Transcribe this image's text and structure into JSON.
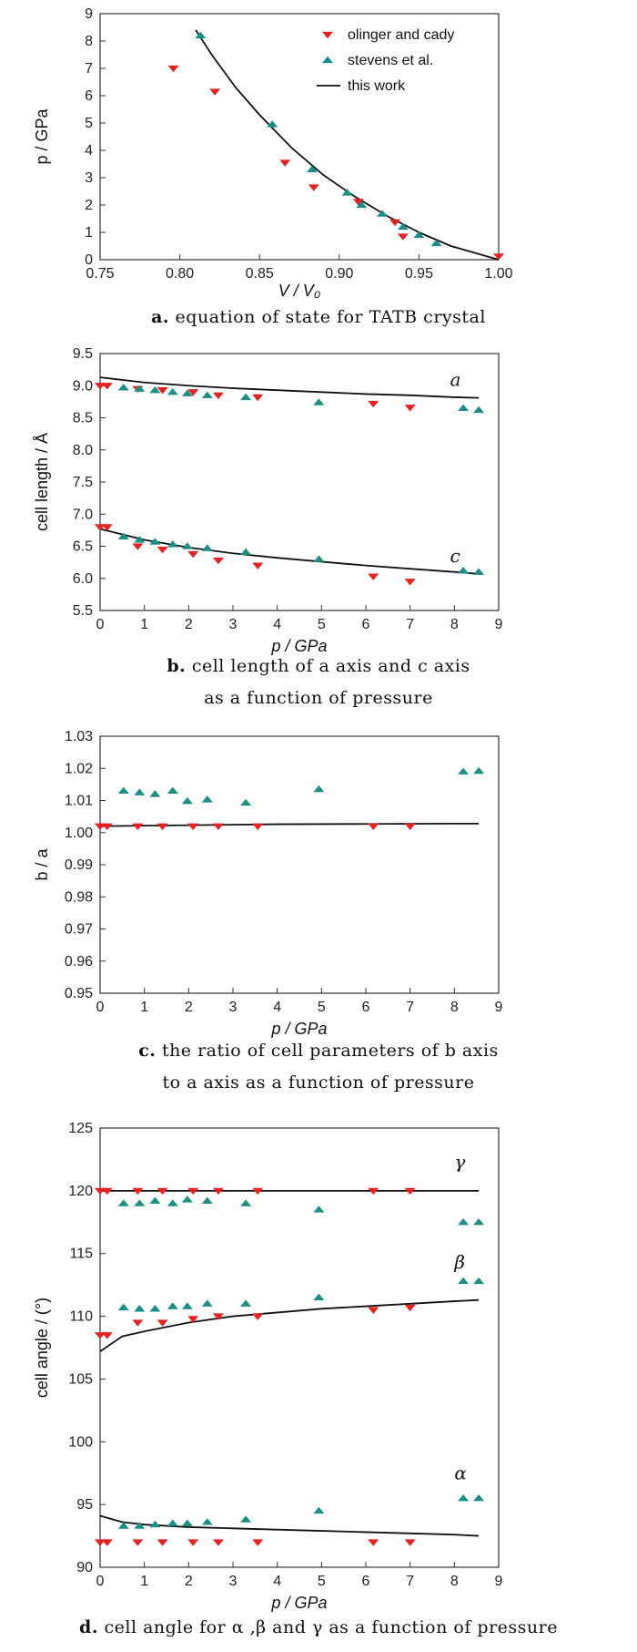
{
  "charts": [
    {
      "id": "a",
      "type": "scatter",
      "xlabel": "V / V₀",
      "ylabel": "p / GPa",
      "xlim": [
        0.75,
        1.0
      ],
      "ylim": [
        0,
        9
      ],
      "xticks": [
        "0.75",
        "0.80",
        "0.85",
        "0.90",
        "0.95",
        "1.00"
      ],
      "yticks": [
        "0",
        "1",
        "2",
        "3",
        "4",
        "5",
        "6",
        "7",
        "8",
        "9"
      ],
      "legend": {
        "placement": "top-right",
        "items": [
          "olinger and cady",
          "stevens et al.",
          "this work"
        ]
      },
      "caption_letter": "a.",
      "caption_text": "equation of state for TATB crystal",
      "caption_line2": ""
    },
    {
      "id": "b",
      "type": "scatter",
      "xlabel": "p / GPa",
      "ylabel": "cell length / Å",
      "xlim": [
        0,
        9
      ],
      "ylim": [
        5.5,
        9.5
      ],
      "xticks": [
        "0",
        "1",
        "2",
        "3",
        "4",
        "5",
        "6",
        "7",
        "8",
        "9"
      ],
      "yticks": [
        "5.5",
        "6.0",
        "6.5",
        "7.0",
        "7.5",
        "8.0",
        "8.5",
        "9.0",
        "9.5"
      ],
      "annotations": [
        "a",
        "c"
      ],
      "caption_letter": "b.",
      "caption_text": "cell length of a axis and c axis",
      "caption_line2": "as a function of pressure"
    },
    {
      "id": "c",
      "type": "scatter",
      "xlabel": "p / GPa",
      "ylabel": "b / a",
      "xlim": [
        0,
        9
      ],
      "ylim": [
        0.95,
        1.03
      ],
      "xticks": [
        "0",
        "1",
        "2",
        "3",
        "4",
        "5",
        "6",
        "7",
        "8",
        "9"
      ],
      "yticks": [
        "0.95",
        "0.96",
        "0.97",
        "0.98",
        "0.99",
        "1.00",
        "1.01",
        "1.02",
        "1.03"
      ],
      "caption_letter": "c.",
      "caption_text": "the ratio of cell parameters of b axis",
      "caption_line2": "to a axis as a function of pressure"
    },
    {
      "id": "d",
      "type": "scatter",
      "xlabel": "p / GPa",
      "ylabel": "cell angle / (°)",
      "xlim": [
        0,
        9
      ],
      "ylim": [
        90,
        125
      ],
      "xticks": [
        "0",
        "1",
        "2",
        "3",
        "4",
        "5",
        "6",
        "7",
        "8",
        "9"
      ],
      "yticks": [
        "90",
        "95",
        "100",
        "105",
        "110",
        "115",
        "120",
        "125"
      ],
      "annotations": [
        "γ",
        "β",
        "α"
      ],
      "caption_letter": "d.",
      "caption_text": "cell angle for α ,β and γ as a function of pressure",
      "caption_line2": ""
    }
  ],
  "colors": {
    "olinger": "#e8201f",
    "stevens": "#1a8f85",
    "line": "#111111",
    "axis": "#333333"
  },
  "chart_data": [
    {
      "type": "scatter",
      "xlim": [
        0.75,
        1.0
      ],
      "ylim": [
        0,
        9
      ],
      "series": [
        {
          "name": "olinger and cady",
          "marker": "triangle-down",
          "x": [
            0.796,
            0.822,
            0.866,
            0.884,
            0.912,
            0.935,
            0.94,
            1.0
          ],
          "y": [
            7.0,
            6.15,
            3.55,
            2.65,
            2.12,
            1.37,
            0.85,
            0.12
          ]
        },
        {
          "name": "stevens et al.",
          "marker": "triangle-up",
          "x": [
            0.813,
            0.858,
            0.883,
            0.905,
            0.914,
            0.927,
            0.94,
            0.95,
            0.961
          ],
          "y": [
            8.2,
            4.95,
            3.3,
            2.45,
            2.0,
            1.68,
            1.2,
            0.9,
            0.6
          ]
        },
        {
          "name": "this work",
          "marker": "line",
          "x": [
            0.81,
            0.82,
            0.835,
            0.85,
            0.87,
            0.89,
            0.91,
            0.93,
            0.95,
            0.97,
            0.985,
            1.0
          ],
          "y": [
            8.4,
            7.5,
            6.3,
            5.3,
            4.1,
            3.1,
            2.3,
            1.6,
            1.0,
            0.5,
            0.25,
            0.0
          ]
        }
      ]
    },
    {
      "type": "scatter",
      "xlim": [
        0,
        9
      ],
      "ylim": [
        5.5,
        9.5
      ],
      "series": [
        {
          "name": "olinger and cady",
          "marker": "triangle-down",
          "x": [
            0.0,
            0.16,
            0.85,
            1.41,
            2.1,
            2.67,
            3.56,
            6.17,
            7.0,
            0.0,
            0.16,
            0.85,
            1.41,
            2.1,
            2.67,
            3.56,
            6.17,
            7.0
          ],
          "y": [
            9.0,
            9.0,
            8.95,
            8.93,
            8.9,
            8.85,
            8.82,
            8.72,
            8.66,
            6.8,
            6.8,
            6.5,
            6.45,
            6.38,
            6.28,
            6.2,
            6.03,
            5.95
          ]
        },
        {
          "name": "stevens et al.",
          "marker": "triangle-up",
          "x": [
            0.53,
            0.89,
            1.24,
            1.64,
            1.97,
            2.42,
            3.29,
            4.94,
            8.2,
            8.55,
            0.53,
            0.89,
            1.24,
            1.64,
            1.97,
            2.42,
            3.29,
            4.94,
            8.2,
            8.55
          ],
          "y": [
            8.97,
            8.95,
            8.93,
            8.9,
            8.88,
            8.85,
            8.82,
            8.74,
            8.65,
            8.62,
            6.65,
            6.6,
            6.57,
            6.53,
            6.5,
            6.47,
            6.41,
            6.3,
            6.12,
            6.1
          ]
        },
        {
          "name": "this work (a)",
          "marker": "line",
          "x": [
            0,
            1,
            2,
            3,
            4,
            5,
            6,
            7,
            8,
            8.55
          ],
          "y": [
            9.13,
            9.05,
            9.0,
            8.96,
            8.93,
            8.9,
            8.87,
            8.85,
            8.82,
            8.81
          ]
        },
        {
          "name": "this work (c)",
          "marker": "line",
          "x": [
            0,
            1,
            2,
            3,
            4,
            5,
            6,
            7,
            8,
            8.55
          ],
          "y": [
            6.77,
            6.6,
            6.48,
            6.39,
            6.32,
            6.26,
            6.2,
            6.15,
            6.1,
            6.07
          ]
        }
      ]
    },
    {
      "type": "scatter",
      "xlim": [
        0,
        9
      ],
      "ylim": [
        0.95,
        1.03
      ],
      "series": [
        {
          "name": "olinger and cady",
          "marker": "triangle-down",
          "x": [
            0.0,
            0.16,
            0.85,
            1.41,
            2.1,
            2.67,
            3.56,
            6.17,
            7.0
          ],
          "y": [
            1.002,
            1.002,
            1.002,
            1.002,
            1.002,
            1.002,
            1.002,
            1.002,
            1.002
          ]
        },
        {
          "name": "stevens et al.",
          "marker": "triangle-up",
          "x": [
            0.53,
            0.89,
            1.24,
            1.64,
            1.97,
            2.42,
            3.29,
            4.94,
            8.2,
            8.55
          ],
          "y": [
            1.013,
            1.0125,
            1.012,
            1.013,
            1.0098,
            1.0103,
            1.0093,
            1.0135,
            1.019,
            1.0192
          ]
        },
        {
          "name": "this work",
          "marker": "line",
          "x": [
            0,
            2,
            4,
            6,
            8,
            8.55
          ],
          "y": [
            1.002,
            1.0023,
            1.0026,
            1.0027,
            1.0028,
            1.0028
          ]
        }
      ]
    },
    {
      "type": "scatter",
      "xlim": [
        0,
        9
      ],
      "ylim": [
        90,
        125
      ],
      "series": [
        {
          "name": "olinger and cady",
          "marker": "triangle-down",
          "x": [
            0.0,
            0.16,
            0.85,
            1.41,
            2.1,
            2.67,
            3.56,
            6.17,
            7.0,
            0.0,
            0.16,
            0.85,
            1.41,
            2.1,
            2.67,
            3.56,
            6.17,
            7.0,
            0.0,
            0.16,
            0.85,
            1.41,
            2.1,
            2.67,
            3.56,
            6.17,
            7.0
          ],
          "y": [
            120,
            120,
            120,
            120,
            120,
            120,
            120,
            120,
            120,
            108.5,
            108.5,
            109.5,
            109.5,
            109.8,
            110.0,
            110.0,
            110.5,
            110.7,
            92,
            92,
            92,
            92,
            92,
            92,
            92,
            92,
            92
          ]
        },
        {
          "name": "stevens et al.",
          "marker": "triangle-up",
          "x": [
            0.53,
            0.89,
            1.24,
            1.64,
            1.97,
            2.42,
            3.29,
            4.94,
            8.2,
            8.55,
            0.53,
            0.89,
            1.24,
            1.64,
            1.97,
            2.42,
            3.29,
            4.94,
            8.2,
            8.55,
            0.53,
            0.89,
            1.24,
            1.64,
            1.97,
            2.42,
            3.29,
            4.94,
            8.2,
            8.55
          ],
          "y": [
            119,
            119,
            119.2,
            119,
            119.3,
            119.2,
            119,
            118.5,
            117.5,
            117.5,
            110.7,
            110.6,
            110.6,
            110.8,
            110.8,
            111,
            111,
            111.5,
            112.8,
            112.8,
            93.3,
            93.3,
            93.4,
            93.5,
            93.5,
            93.6,
            93.8,
            94.5,
            95.5,
            95.5
          ]
        },
        {
          "name": "this work (gamma)",
          "marker": "line",
          "x": [
            0,
            8.55
          ],
          "y": [
            120,
            120
          ]
        },
        {
          "name": "this work (beta)",
          "marker": "line",
          "x": [
            0,
            0.5,
            1,
            2,
            3,
            4,
            5,
            6,
            7,
            8,
            8.55
          ],
          "y": [
            107.2,
            108.4,
            108.8,
            109.5,
            110,
            110.3,
            110.6,
            110.8,
            111,
            111.2,
            111.3
          ]
        },
        {
          "name": "this work (alpha)",
          "marker": "line",
          "x": [
            0,
            0.5,
            1,
            2,
            3,
            4,
            5,
            6,
            7,
            8,
            8.55
          ],
          "y": [
            94.1,
            93.6,
            93.4,
            93.2,
            93.1,
            93.0,
            92.9,
            92.8,
            92.7,
            92.6,
            92.5
          ]
        }
      ]
    }
  ]
}
